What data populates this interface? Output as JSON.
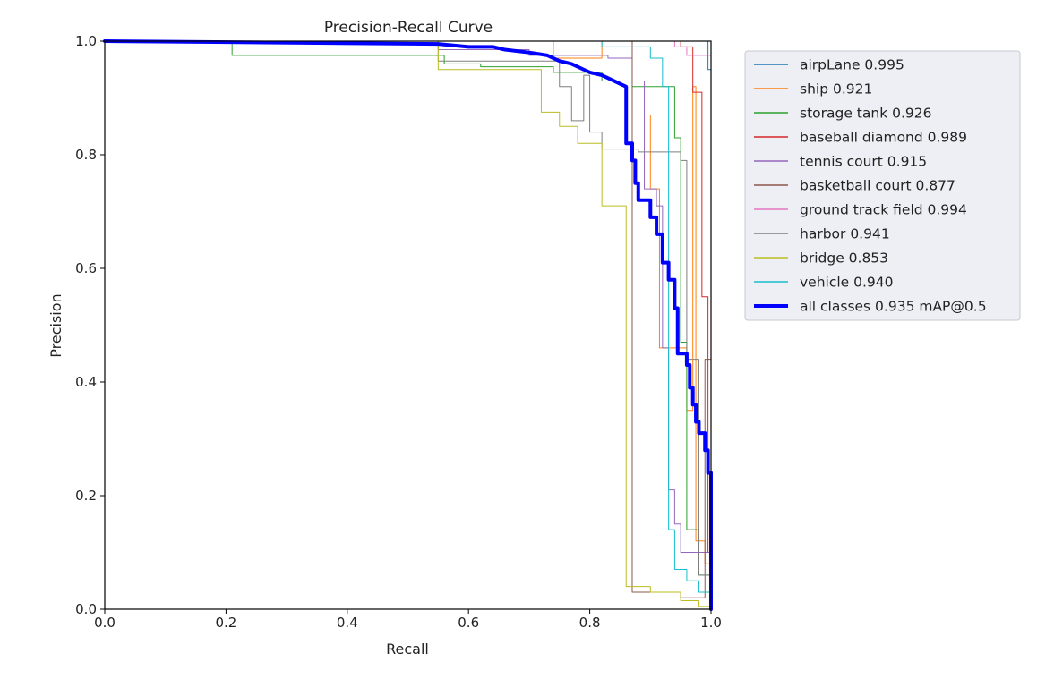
{
  "chart_data": {
    "type": "line",
    "title": "Precision-Recall Curve",
    "xlabel": "Recall",
    "ylabel": "Precision",
    "xlim": [
      0,
      1
    ],
    "ylim": [
      0,
      1
    ],
    "xticks": [
      0.0,
      0.2,
      0.4,
      0.6,
      0.8,
      1.0
    ],
    "yticks": [
      0.0,
      0.2,
      0.4,
      0.6,
      0.8,
      1.0
    ],
    "xtick_labels": [
      "0.0",
      "0.2",
      "0.4",
      "0.6",
      "0.8",
      "1.0"
    ],
    "ytick_labels": [
      "0.0",
      "0.2",
      "0.4",
      "0.6",
      "0.8",
      "1.0"
    ],
    "grid": false,
    "legend_position": "outside-right-top",
    "series": [
      {
        "name": "airpLane 0.995",
        "color": "#1f77b4",
        "width": 1,
        "points": [
          [
            0,
            1
          ],
          [
            0.995,
            1
          ],
          [
            0.995,
            0.95
          ],
          [
            1,
            0.95
          ],
          [
            1,
            0
          ]
        ]
      },
      {
        "name": "ship 0.921",
        "color": "#ff7f0e",
        "width": 1,
        "points": [
          [
            0,
            1
          ],
          [
            0.74,
            1
          ],
          [
            0.74,
            0.97
          ],
          [
            0.82,
            0.97
          ],
          [
            0.82,
            1
          ],
          [
            0.87,
            1
          ],
          [
            0.87,
            0.87
          ],
          [
            0.9,
            0.87
          ],
          [
            0.9,
            0.74
          ],
          [
            0.915,
            0.74
          ],
          [
            0.915,
            0.46
          ],
          [
            0.96,
            0.46
          ],
          [
            0.96,
            0.35
          ],
          [
            0.97,
            0.35
          ],
          [
            0.97,
            0.92
          ],
          [
            0.975,
            0.92
          ],
          [
            0.975,
            0.12
          ],
          [
            0.99,
            0.12
          ],
          [
            0.99,
            0.08
          ],
          [
            1,
            0.08
          ],
          [
            1,
            0
          ]
        ]
      },
      {
        "name": "storage tank 0.926",
        "color": "#2ca02c",
        "width": 1,
        "points": [
          [
            0,
            1
          ],
          [
            0.21,
            1
          ],
          [
            0.21,
            0.975
          ],
          [
            0.56,
            0.975
          ],
          [
            0.56,
            0.96
          ],
          [
            0.62,
            0.96
          ],
          [
            0.62,
            0.955
          ],
          [
            0.74,
            0.955
          ],
          [
            0.74,
            0.945
          ],
          [
            0.82,
            0.945
          ],
          [
            0.82,
            0.93
          ],
          [
            0.87,
            0.93
          ],
          [
            0.87,
            0.92
          ],
          [
            0.94,
            0.92
          ],
          [
            0.94,
            0.83
          ],
          [
            0.95,
            0.83
          ],
          [
            0.95,
            0.47
          ],
          [
            0.96,
            0.47
          ],
          [
            0.96,
            0.14
          ],
          [
            0.98,
            0.14
          ],
          [
            0.98,
            0.06
          ],
          [
            1,
            0.06
          ],
          [
            1,
            0
          ]
        ]
      },
      {
        "name": "baseball diamond 0.989",
        "color": "#d62728",
        "width": 1,
        "points": [
          [
            0,
            1
          ],
          [
            0.95,
            1
          ],
          [
            0.95,
            0.99
          ],
          [
            0.97,
            0.99
          ],
          [
            0.97,
            0.91
          ],
          [
            0.985,
            0.91
          ],
          [
            0.985,
            0.55
          ],
          [
            0.995,
            0.55
          ],
          [
            0.995,
            0.1
          ],
          [
            1,
            0.1
          ],
          [
            1,
            0
          ]
        ]
      },
      {
        "name": "tennis court 0.915",
        "color": "#9467bd",
        "width": 1,
        "points": [
          [
            0,
            1
          ],
          [
            0.55,
            1
          ],
          [
            0.55,
            0.985
          ],
          [
            0.7,
            0.985
          ],
          [
            0.7,
            0.975
          ],
          [
            0.83,
            0.975
          ],
          [
            0.83,
            0.97
          ],
          [
            0.87,
            0.97
          ],
          [
            0.87,
            0.93
          ],
          [
            0.89,
            0.93
          ],
          [
            0.89,
            0.74
          ],
          [
            0.91,
            0.74
          ],
          [
            0.91,
            0.71
          ],
          [
            0.92,
            0.71
          ],
          [
            0.92,
            0.46
          ],
          [
            0.93,
            0.46
          ],
          [
            0.93,
            0.21
          ],
          [
            0.94,
            0.21
          ],
          [
            0.94,
            0.15
          ],
          [
            0.95,
            0.15
          ],
          [
            0.95,
            0.1
          ],
          [
            1,
            0.1
          ],
          [
            1,
            0
          ]
        ]
      },
      {
        "name": "basketball court 0.877",
        "color": "#8c564b",
        "width": 1,
        "points": [
          [
            0,
            1
          ],
          [
            0.87,
            1
          ],
          [
            0.87,
            0.03
          ],
          [
            0.95,
            0.03
          ],
          [
            0.95,
            0.02
          ],
          [
            0.99,
            0.02
          ],
          [
            0.99,
            0.44
          ],
          [
            1,
            0.44
          ],
          [
            1,
            0
          ]
        ]
      },
      {
        "name": "ground track field 0.994",
        "color": "#e377c2",
        "width": 1,
        "points": [
          [
            0,
            1
          ],
          [
            0.94,
            1
          ],
          [
            0.94,
            0.99
          ],
          [
            0.96,
            0.99
          ],
          [
            0.96,
            0.975
          ],
          [
            1,
            0.975
          ],
          [
            1,
            0
          ]
        ]
      },
      {
        "name": "harbor 0.941",
        "color": "#7f7f7f",
        "width": 1,
        "points": [
          [
            0,
            1
          ],
          [
            0.55,
            1
          ],
          [
            0.55,
            0.965
          ],
          [
            0.75,
            0.965
          ],
          [
            0.75,
            0.92
          ],
          [
            0.77,
            0.92
          ],
          [
            0.77,
            0.86
          ],
          [
            0.79,
            0.86
          ],
          [
            0.79,
            0.94
          ],
          [
            0.8,
            0.94
          ],
          [
            0.8,
            0.84
          ],
          [
            0.82,
            0.84
          ],
          [
            0.82,
            0.81
          ],
          [
            0.88,
            0.81
          ],
          [
            0.88,
            0.805
          ],
          [
            0.95,
            0.805
          ],
          [
            0.95,
            0.79
          ],
          [
            0.96,
            0.79
          ],
          [
            0.96,
            0.44
          ],
          [
            0.98,
            0.44
          ],
          [
            0.98,
            0.06
          ],
          [
            1,
            0.06
          ],
          [
            1,
            0
          ]
        ]
      },
      {
        "name": "bridge 0.853",
        "color": "#bcbd22",
        "width": 1,
        "points": [
          [
            0,
            1
          ],
          [
            0.55,
            1
          ],
          [
            0.55,
            0.95
          ],
          [
            0.72,
            0.95
          ],
          [
            0.72,
            0.875
          ],
          [
            0.75,
            0.875
          ],
          [
            0.75,
            0.85
          ],
          [
            0.78,
            0.85
          ],
          [
            0.78,
            0.82
          ],
          [
            0.82,
            0.82
          ],
          [
            0.82,
            0.71
          ],
          [
            0.86,
            0.71
          ],
          [
            0.86,
            0.04
          ],
          [
            0.9,
            0.04
          ],
          [
            0.9,
            0.03
          ],
          [
            0.95,
            0.03
          ],
          [
            0.95,
            0.015
          ],
          [
            0.98,
            0.015
          ],
          [
            0.98,
            0.005
          ],
          [
            1,
            0.005
          ],
          [
            1,
            0
          ]
        ]
      },
      {
        "name": "vehicle 0.940",
        "color": "#17becf",
        "width": 1,
        "points": [
          [
            0,
            1
          ],
          [
            0.82,
            1
          ],
          [
            0.82,
            0.99
          ],
          [
            0.9,
            0.99
          ],
          [
            0.9,
            0.97
          ],
          [
            0.92,
            0.97
          ],
          [
            0.92,
            0.92
          ],
          [
            0.93,
            0.92
          ],
          [
            0.93,
            0.14
          ],
          [
            0.94,
            0.14
          ],
          [
            0.94,
            0.07
          ],
          [
            0.96,
            0.07
          ],
          [
            0.96,
            0.05
          ],
          [
            0.98,
            0.05
          ],
          [
            0.98,
            0.03
          ],
          [
            1,
            0.03
          ],
          [
            1,
            0
          ]
        ]
      },
      {
        "name": "all classes 0.935 mAP@0.5",
        "color": "#0000ff",
        "width": 4,
        "points": [
          [
            0,
            1
          ],
          [
            0.55,
            0.995
          ],
          [
            0.6,
            0.99
          ],
          [
            0.64,
            0.99
          ],
          [
            0.66,
            0.985
          ],
          [
            0.7,
            0.98
          ],
          [
            0.73,
            0.975
          ],
          [
            0.74,
            0.97
          ],
          [
            0.75,
            0.965
          ],
          [
            0.77,
            0.96
          ],
          [
            0.79,
            0.95
          ],
          [
            0.8,
            0.945
          ],
          [
            0.82,
            0.94
          ],
          [
            0.84,
            0.93
          ],
          [
            0.85,
            0.925
          ],
          [
            0.86,
            0.92
          ],
          [
            0.86,
            0.82
          ],
          [
            0.87,
            0.82
          ],
          [
            0.87,
            0.79
          ],
          [
            0.875,
            0.79
          ],
          [
            0.875,
            0.75
          ],
          [
            0.88,
            0.75
          ],
          [
            0.88,
            0.72
          ],
          [
            0.9,
            0.72
          ],
          [
            0.9,
            0.69
          ],
          [
            0.91,
            0.69
          ],
          [
            0.91,
            0.66
          ],
          [
            0.92,
            0.66
          ],
          [
            0.92,
            0.61
          ],
          [
            0.93,
            0.61
          ],
          [
            0.93,
            0.58
          ],
          [
            0.94,
            0.58
          ],
          [
            0.94,
            0.53
          ],
          [
            0.945,
            0.53
          ],
          [
            0.945,
            0.45
          ],
          [
            0.96,
            0.45
          ],
          [
            0.96,
            0.43
          ],
          [
            0.965,
            0.43
          ],
          [
            0.965,
            0.39
          ],
          [
            0.97,
            0.39
          ],
          [
            0.97,
            0.36
          ],
          [
            0.975,
            0.36
          ],
          [
            0.975,
            0.33
          ],
          [
            0.98,
            0.33
          ],
          [
            0.98,
            0.31
          ],
          [
            0.99,
            0.31
          ],
          [
            0.99,
            0.28
          ],
          [
            0.995,
            0.28
          ],
          [
            0.995,
            0.24
          ],
          [
            1,
            0.24
          ],
          [
            1,
            0
          ]
        ]
      }
    ]
  }
}
